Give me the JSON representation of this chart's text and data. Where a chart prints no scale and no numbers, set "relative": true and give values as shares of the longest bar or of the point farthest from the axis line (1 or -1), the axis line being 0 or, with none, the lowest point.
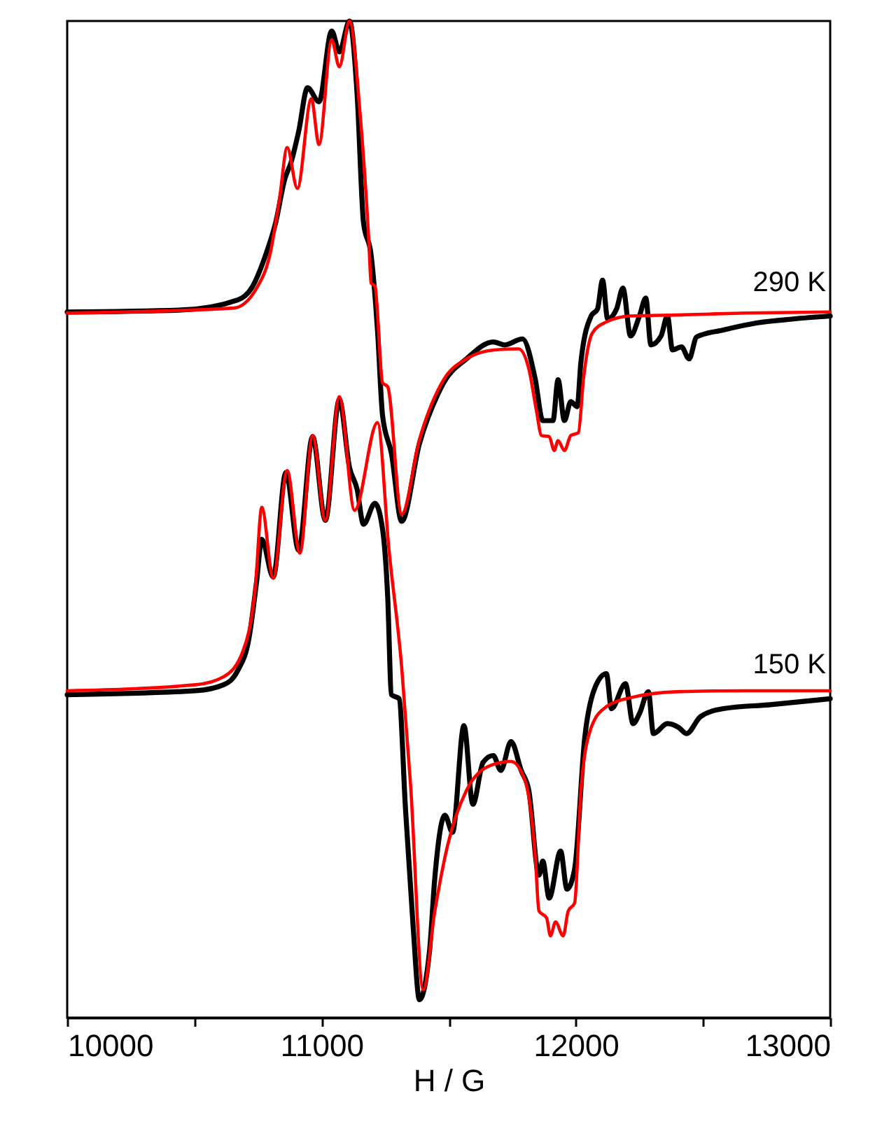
{
  "chart_data": {
    "type": "line",
    "relative": true,
    "xlabel": "H / G",
    "xlim": [
      10000,
      13000
    ],
    "xticks": [
      10000,
      {
        "value": 10500,
        "label": null
      },
      11000,
      {
        "value": 11500,
        "label": null
      },
      12000,
      {
        "value": 12500,
        "label": null
      },
      13000
    ],
    "series": [
      {
        "color": "#000000",
        "x": [
          10000,
          10450,
          10670,
          10725,
          10780,
          10820,
          10855,
          10880,
          10910,
          10945,
          10990,
          11040,
          11070,
          11110,
          11140,
          11165,
          11195,
          11220,
          11240,
          11275,
          11315,
          11385,
          11460,
          11480,
          11570,
          11675,
          11720,
          11790,
          11840,
          11870,
          11910,
          11930,
          11955,
          11980,
          12005,
          12020,
          12060,
          12085,
          12105,
          12125,
          12160,
          12185,
          12215,
          12250,
          12275,
          12295,
          12335,
          12360,
          12380,
          12415,
          12445,
          12475,
          12580,
          12710,
          12855,
          13000
        ],
        "values": [
          0.708,
          0.71,
          0.72,
          0.732,
          0.765,
          0.798,
          0.841,
          0.858,
          0.889,
          0.933,
          0.919,
          0.99,
          0.969,
          1.0,
          0.926,
          0.798,
          0.765,
          0.69,
          0.604,
          0.566,
          0.498,
          0.576,
          0.627,
          0.637,
          0.661,
          0.678,
          0.675,
          0.681,
          0.641,
          0.599,
          0.599,
          0.64,
          0.599,
          0.618,
          0.613,
          0.658,
          0.704,
          0.711,
          0.74,
          0.701,
          0.711,
          0.732,
          0.684,
          0.704,
          0.722,
          0.675,
          0.684,
          0.704,
          0.67,
          0.673,
          0.661,
          0.683,
          0.69,
          0.697,
          0.701,
          0.704
        ]
      },
      {
        "color": "#ff0000",
        "x": [
          10000,
          10655,
          10745,
          10800,
          10835,
          10865,
          10905,
          10960,
          10990,
          11040,
          11070,
          11110,
          11150,
          11185,
          11195,
          11210,
          11240,
          11260,
          11315,
          11385,
          11480,
          11570,
          11680,
          11775,
          11815,
          11845,
          11865,
          11895,
          11915,
          11930,
          11955,
          11980,
          12010,
          12030,
          12065,
          12120,
          12215,
          12395,
          12670,
          13000
        ],
        "values": [
          0.707,
          0.712,
          0.732,
          0.769,
          0.822,
          0.873,
          0.832,
          0.922,
          0.876,
          0.981,
          0.954,
          1.0,
          0.912,
          0.784,
          0.737,
          0.734,
          0.637,
          0.633,
          0.505,
          0.58,
          0.64,
          0.661,
          0.67,
          0.671,
          0.651,
          0.609,
          0.584,
          0.583,
          0.569,
          0.579,
          0.569,
          0.584,
          0.587,
          0.641,
          0.687,
          0.698,
          0.704,
          0.705,
          0.707,
          0.708
        ]
      },
      {
        "color": "#000000",
        "x": [
          10000,
          10505,
          10615,
          10670,
          10715,
          10745,
          10765,
          10810,
          10860,
          10910,
          10965,
          11015,
          11070,
          11110,
          11140,
          11165,
          11210,
          11240,
          11260,
          11275,
          11305,
          11330,
          11360,
          11385,
          11425,
          11445,
          11485,
          11515,
          11560,
          11595,
          11635,
          11675,
          11705,
          11745,
          11785,
          11815,
          11855,
          11870,
          11895,
          11940,
          11965,
          11995,
          12035,
          12075,
          12120,
          12140,
          12195,
          12225,
          12250,
          12285,
          12305,
          12360,
          12405,
          12435,
          12490,
          12580,
          12765,
          13000
        ],
        "values": [
          0.324,
          0.328,
          0.334,
          0.348,
          0.381,
          0.438,
          0.48,
          0.442,
          0.547,
          0.469,
          0.583,
          0.499,
          0.62,
          0.552,
          0.53,
          0.495,
          0.516,
          0.49,
          0.423,
          0.324,
          0.32,
          0.21,
          0.092,
          0.018,
          0.068,
          0.139,
          0.203,
          0.186,
          0.293,
          0.214,
          0.256,
          0.263,
          0.248,
          0.277,
          0.248,
          0.228,
          0.143,
          0.157,
          0.12,
          0.167,
          0.129,
          0.149,
          0.281,
          0.331,
          0.345,
          0.31,
          0.335,
          0.295,
          0.305,
          0.327,
          0.285,
          0.295,
          0.291,
          0.285,
          0.302,
          0.31,
          0.314,
          0.32
        ]
      },
      {
        "color": "#ff0000",
        "x": [
          10000,
          10505,
          10615,
          10690,
          10740,
          10765,
          10810,
          10865,
          10915,
          10965,
          11015,
          11070,
          11130,
          11220,
          11265,
          11315,
          11350,
          11400,
          11445,
          11495,
          11570,
          11665,
          11745,
          11800,
          11840,
          11855,
          11885,
          11900,
          11920,
          11950,
          11970,
          11995,
          12020,
          12060,
          12120,
          12215,
          12395,
          12670,
          13000
        ],
        "values": [
          0.328,
          0.334,
          0.342,
          0.367,
          0.433,
          0.512,
          0.441,
          0.549,
          0.466,
          0.584,
          0.499,
          0.623,
          0.509,
          0.597,
          0.47,
          0.352,
          0.234,
          0.028,
          0.106,
          0.172,
          0.228,
          0.253,
          0.257,
          0.238,
          0.163,
          0.107,
          0.1,
          0.082,
          0.096,
          0.082,
          0.107,
          0.115,
          0.228,
          0.291,
          0.312,
          0.321,
          0.327,
          0.328,
          0.328
        ]
      }
    ],
    "annotations": [
      "290 K",
      "150 K"
    ]
  }
}
